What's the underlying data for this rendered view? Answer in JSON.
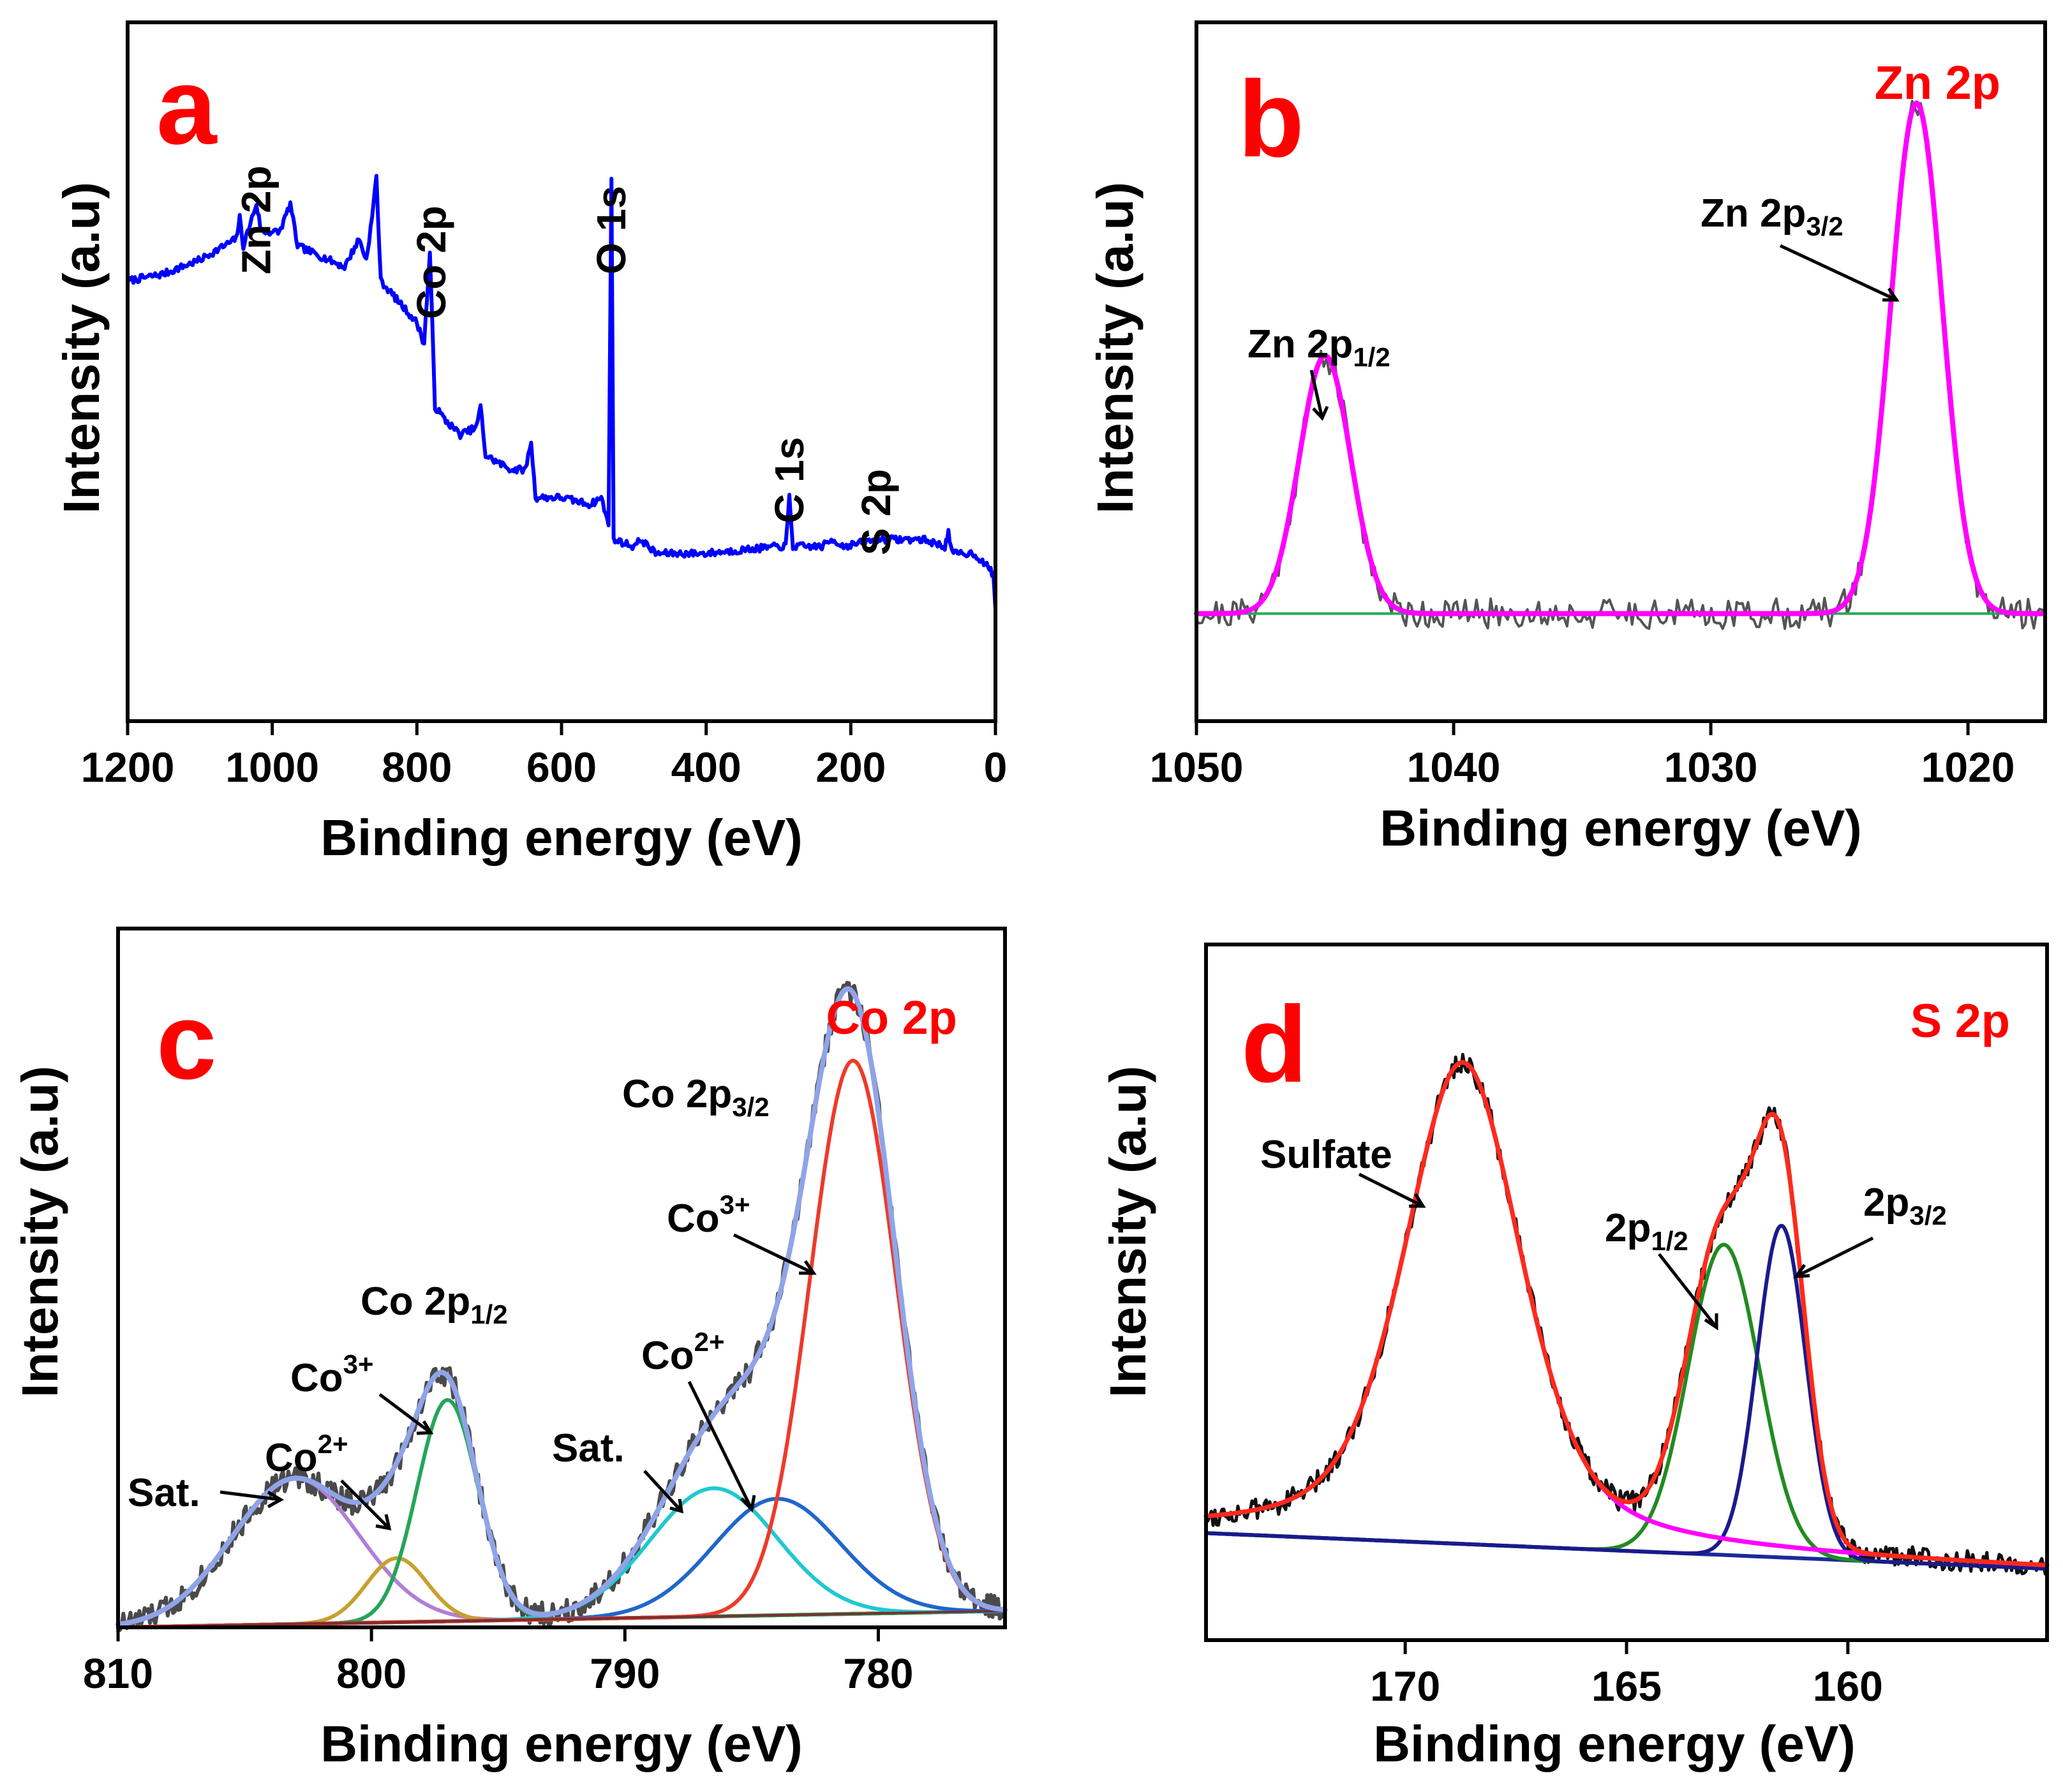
{
  "chart_data": [
    {
      "panel": "a",
      "type": "line",
      "title": "",
      "xlabel": "Binding energy (eV)",
      "ylabel": "Intensity (a.u)",
      "xlim": [
        1200,
        0
      ],
      "xticks": [
        1200,
        1000,
        800,
        600,
        400,
        200,
        0
      ],
      "ylim": [
        0,
        100
      ],
      "series": [
        {
          "name": "survey",
          "color": "#0000ff",
          "points": [
            [
              1200,
              63
            ],
            [
              1150,
              64
            ],
            [
              1100,
              66
            ],
            [
              1050,
              69
            ],
            [
              1045,
              72
            ],
            [
              1040,
              68
            ],
            [
              1022,
              74
            ],
            [
              1015,
              70
            ],
            [
              990,
              70
            ],
            [
              975,
              74
            ],
            [
              965,
              68
            ],
            [
              900,
              65
            ],
            [
              880,
              69
            ],
            [
              870,
              66
            ],
            [
              862,
              72
            ],
            [
              856,
              78
            ],
            [
              850,
              63
            ],
            [
              800,
              57
            ],
            [
              790,
              54
            ],
            [
              782,
              67
            ],
            [
              775,
              45
            ],
            [
              760,
              43
            ],
            [
              740,
              41
            ],
            [
              718,
              42
            ],
            [
              712,
              45
            ],
            [
              705,
              38
            ],
            [
              670,
              36
            ],
            [
              650,
              36
            ],
            [
              642,
              40
            ],
            [
              636,
              32
            ],
            [
              600,
              32
            ],
            [
              560,
              31
            ],
            [
              545,
              32
            ],
            [
              535,
              28
            ],
            [
              531,
              78
            ],
            [
              528,
              26
            ],
            [
              500,
              25
            ],
            [
              490,
              26
            ],
            [
              470,
              24
            ],
            [
              400,
              24
            ],
            [
              300,
              25
            ],
            [
              290,
              25
            ],
            [
              285,
              32
            ],
            [
              280,
              25
            ],
            [
              240,
              25
            ],
            [
              225,
              26
            ],
            [
              210,
              25
            ],
            [
              165,
              26
            ],
            [
              160,
              26
            ],
            [
              100,
              26
            ],
            [
              70,
              25
            ],
            [
              65,
              27
            ],
            [
              60,
              24
            ],
            [
              30,
              24
            ],
            [
              10,
              22
            ],
            [
              3,
              21
            ],
            [
              0,
              16
            ]
          ]
        }
      ],
      "peak_labels": [
        {
          "text": "Zn 2p",
          "x": 1022
        },
        {
          "text": "Co 2p",
          "x": 780
        },
        {
          "text": "O 1s",
          "x": 531
        },
        {
          "text": "C 1s",
          "x": 285
        },
        {
          "text": "S 2p",
          "x": 165
        }
      ]
    },
    {
      "panel": "b",
      "type": "line",
      "title": "Zn 2p",
      "xlabel": "Binding energy (eV)",
      "ylabel": "Intensity (a.u)",
      "xlim": [
        1050,
        1017
      ],
      "xticks": [
        1050,
        1040,
        1030,
        1020
      ],
      "ylim": [
        -0.2,
        1.1
      ],
      "series": [
        {
          "name": "raw",
          "color": "#555555",
          "noise": 0.028
        },
        {
          "name": "fit",
          "color": "#ff00ff"
        },
        {
          "name": "background",
          "color": "#22aa55"
        }
      ],
      "components": [
        {
          "name": "Zn 2p1/2",
          "center": 1045.0,
          "height": 0.48,
          "width": 1.0
        },
        {
          "name": "Zn 2p3/2",
          "center": 1022.0,
          "height": 0.95,
          "width": 1.0
        }
      ],
      "annotations": [
        {
          "main": "Zn 2p",
          "sub": "1/2",
          "x": 1045.0
        },
        {
          "main": "Zn 2p",
          "sub": "3/2",
          "x": 1022.5
        }
      ]
    },
    {
      "panel": "c",
      "type": "line",
      "title": "Co 2p",
      "xlabel": "Binding energy (eV)",
      "ylabel": "Intensity (a.u)",
      "xlim": [
        810,
        775
      ],
      "xticks": [
        810,
        800,
        790,
        780
      ],
      "ylim": [
        0,
        1.2
      ],
      "components": [
        {
          "name": "Sat.",
          "center": 803.0,
          "height": 0.25,
          "width": 2.5,
          "color": "#b27ed6"
        },
        {
          "name": "Co2+",
          "center": 799.0,
          "height": 0.11,
          "width": 1.2,
          "color": "#c8a02c"
        },
        {
          "name": "Co3+",
          "center": 797.0,
          "height": 0.38,
          "width": 1.2,
          "color": "#27a45a"
        },
        {
          "name": "Sat.",
          "center": 786.5,
          "height": 0.22,
          "width": 2.5,
          "color": "#20c8d0"
        },
        {
          "name": "Co2+",
          "center": 784.0,
          "height": 0.2,
          "width": 2.5,
          "color": "#2066cc"
        },
        {
          "name": "Co3+",
          "center": 781.0,
          "height": 0.95,
          "width": 1.7,
          "color": "#ee3a2a"
        }
      ],
      "series": [
        {
          "name": "raw",
          "color": "#4a4a4a",
          "noise": 0.022
        },
        {
          "name": "envelope",
          "color": "#8fa4e8"
        },
        {
          "name": "background",
          "color": "#7a3030"
        }
      ],
      "annotations": [
        {
          "main": "Co 2p",
          "sub": "3/2"
        },
        {
          "main": "Co 2p",
          "sub": "1/2"
        },
        {
          "main": "Co",
          "sup": "3+"
        },
        {
          "main": "Co",
          "sup": "2+"
        },
        {
          "main": "Sat."
        },
        {
          "main": "Co",
          "sup": "3+"
        },
        {
          "main": "Co",
          "sup": "2+"
        },
        {
          "main": "Sat."
        }
      ]
    },
    {
      "panel": "d",
      "type": "line",
      "title": "S 2p",
      "xlabel": "Binding energy (eV)",
      "ylabel": "Intensity (a.u)",
      "xlim": [
        174.5,
        155.5
      ],
      "xticks": [
        170,
        165,
        160
      ],
      "ylim": [
        -0.15,
        1.15
      ],
      "components": [
        {
          "name": "Sulfate",
          "center": 168.7,
          "height": 0.9,
          "width": 1.3,
          "color": "#ff00ff"
        },
        {
          "name": "2p1/2",
          "center": 162.8,
          "height": 0.58,
          "width": 0.8,
          "color": "#228b22"
        },
        {
          "name": "2p3/2",
          "center": 161.5,
          "height": 0.62,
          "width": 0.55,
          "color": "#1a1a8c"
        }
      ],
      "series": [
        {
          "name": "raw",
          "color": "#111111",
          "noise": 0.02
        },
        {
          "name": "envelope",
          "color": "#ff2a1a"
        },
        {
          "name": "background",
          "color": "#1a2a9a"
        }
      ],
      "annotations": [
        {
          "main": "Sulfate"
        },
        {
          "main": "2p",
          "sub": "1/2"
        },
        {
          "main": "2p",
          "sub": "3/2"
        }
      ]
    }
  ],
  "panels": {
    "a": {
      "letter": "a",
      "color": "#ff0000"
    },
    "b": {
      "letter": "b",
      "title": "Zn 2p",
      "color": "#ff0000"
    },
    "c": {
      "letter": "c",
      "title": "Co 2p",
      "color": "#ff0000"
    },
    "d": {
      "letter": "d",
      "title": "S 2p",
      "color": "#ff0000"
    }
  },
  "labels": {
    "xlabel": "Binding energy (eV)",
    "ylabel": "Intensity (a.u)"
  }
}
